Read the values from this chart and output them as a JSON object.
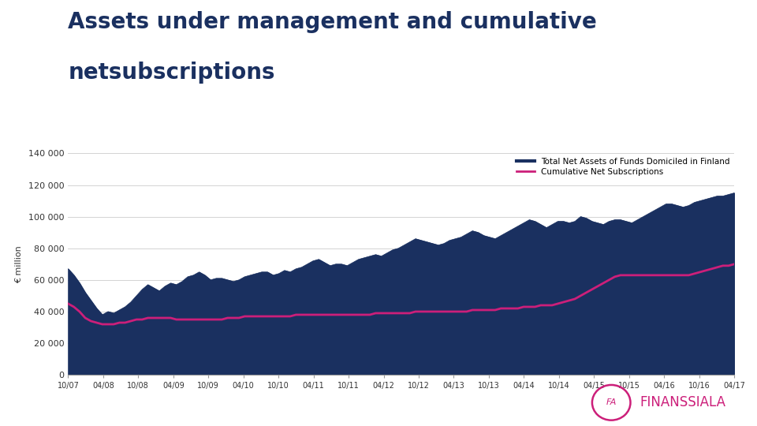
{
  "title_line1": "Assets under management and cumulative",
  "title_line2": "netsubscriptions",
  "title_color": "#1a3060",
  "title_fontsize": 20,
  "ylabel": "€ million",
  "ylabel_fontsize": 8,
  "background_color": "#ffffff",
  "area_color": "#1a3060",
  "line_color": "#cc1f7a",
  "ylim": [
    0,
    140000
  ],
  "yticks": [
    0,
    20000,
    40000,
    60000,
    80000,
    100000,
    120000,
    140000
  ],
  "ytick_labels": [
    "0",
    "20 000",
    "40 000",
    "60 000",
    "80 000",
    "100 000",
    "120 000",
    "140 000"
  ],
  "xtick_labels": [
    "10/07",
    "04/08",
    "10/08",
    "04/09",
    "10/09",
    "04/10",
    "10/10",
    "04/11",
    "10/11",
    "04/12",
    "10/12",
    "04/13",
    "10/13",
    "04/14",
    "10/14",
    "04/15",
    "10/15",
    "04/16",
    "10/16",
    "04/17"
  ],
  "legend_area": "Total Net Assets of Funds Domiciled in Finland",
  "legend_line": "Cumulative Net Subscriptions",
  "grid_color": "#cccccc",
  "assets_data": [
    67000,
    63000,
    58000,
    52000,
    47000,
    42000,
    38000,
    40000,
    39000,
    41000,
    43000,
    46000,
    50000,
    54000,
    57000,
    55000,
    53000,
    56000,
    58000,
    57000,
    59000,
    62000,
    63000,
    65000,
    63000,
    60000,
    61000,
    61000,
    60000,
    59000,
    60000,
    62000,
    63000,
    64000,
    65000,
    65000,
    63000,
    64000,
    66000,
    65000,
    67000,
    68000,
    70000,
    72000,
    73000,
    71000,
    69000,
    70000,
    70000,
    69000,
    71000,
    73000,
    74000,
    75000,
    76000,
    75000,
    77000,
    79000,
    80000,
    82000,
    84000,
    86000,
    85000,
    84000,
    83000,
    82000,
    83000,
    85000,
    86000,
    87000,
    89000,
    91000,
    90000,
    88000,
    87000,
    86000,
    88000,
    90000,
    92000,
    94000,
    96000,
    98000,
    97000,
    95000,
    93000,
    95000,
    97000,
    97000,
    96000,
    97000,
    100000,
    99000,
    97000,
    96000,
    95000,
    97000,
    98000,
    98000,
    97000,
    96000,
    98000,
    100000,
    102000,
    104000,
    106000,
    108000,
    108000,
    107000,
    106000,
    107000,
    109000,
    110000,
    111000,
    112000,
    113000,
    113000,
    114000,
    115000
  ],
  "netsubscriptions_data": [
    45000,
    43000,
    40000,
    36000,
    34000,
    33000,
    32000,
    32000,
    32000,
    33000,
    33000,
    34000,
    35000,
    35000,
    36000,
    36000,
    36000,
    36000,
    36000,
    35000,
    35000,
    35000,
    35000,
    35000,
    35000,
    35000,
    35000,
    35000,
    36000,
    36000,
    36000,
    37000,
    37000,
    37000,
    37000,
    37000,
    37000,
    37000,
    37000,
    37000,
    38000,
    38000,
    38000,
    38000,
    38000,
    38000,
    38000,
    38000,
    38000,
    38000,
    38000,
    38000,
    38000,
    38000,
    39000,
    39000,
    39000,
    39000,
    39000,
    39000,
    39000,
    40000,
    40000,
    40000,
    40000,
    40000,
    40000,
    40000,
    40000,
    40000,
    40000,
    41000,
    41000,
    41000,
    41000,
    41000,
    42000,
    42000,
    42000,
    42000,
    43000,
    43000,
    43000,
    44000,
    44000,
    44000,
    45000,
    46000,
    47000,
    48000,
    50000,
    52000,
    54000,
    56000,
    58000,
    60000,
    62000,
    63000,
    63000,
    63000,
    63000,
    63000,
    63000,
    63000,
    63000,
    63000,
    63000,
    63000,
    63000,
    63000,
    64000,
    65000,
    66000,
    67000,
    68000,
    69000,
    69000,
    70000
  ]
}
